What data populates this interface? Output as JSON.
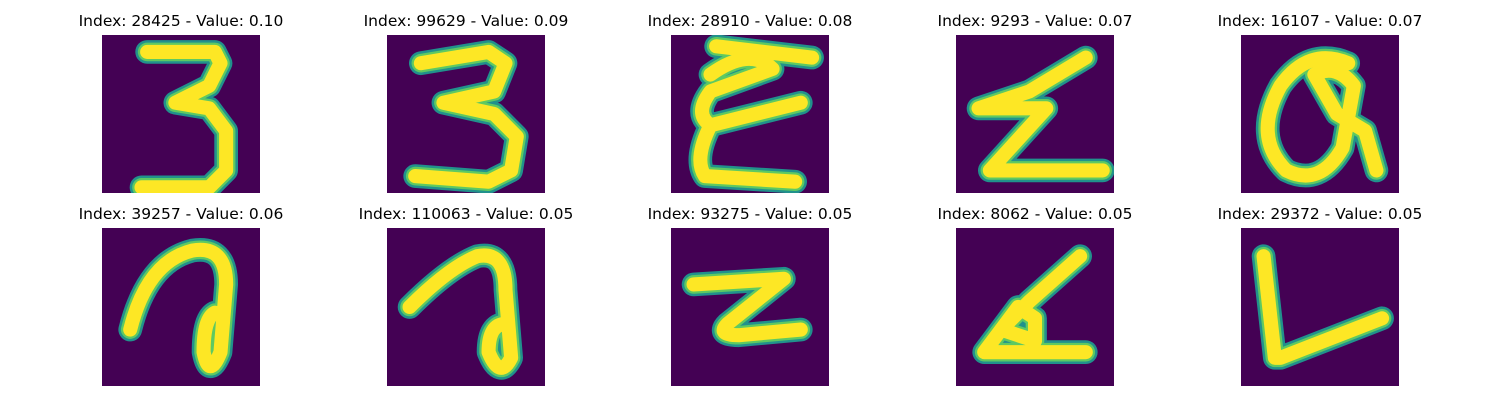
{
  "colors": {
    "background": "#440154",
    "stroke_halo": "#21918c",
    "stroke_mid": "#5ec962",
    "stroke_core": "#fde725"
  },
  "panels": [
    {
      "title": "Index: 28425 - Value: 0.10",
      "index": 28425,
      "value": 0.1
    },
    {
      "title": "Index: 99629 - Value: 0.09",
      "index": 99629,
      "value": 0.09
    },
    {
      "title": "Index: 28910 - Value: 0.08",
      "index": 28910,
      "value": 0.08
    },
    {
      "title": "Index: 9293 - Value: 0.07",
      "index": 9293,
      "value": 0.07
    },
    {
      "title": "Index: 16107 - Value: 0.07",
      "index": 16107,
      "value": 0.07
    },
    {
      "title": "Index: 39257 - Value: 0.06",
      "index": 39257,
      "value": 0.06
    },
    {
      "title": "Index: 110063 - Value: 0.05",
      "index": 110063,
      "value": 0.05
    },
    {
      "title": "Index: 93275 - Value: 0.05",
      "index": 93275,
      "value": 0.05
    },
    {
      "title": "Index: 8062 - Value: 0.05",
      "index": 8062,
      "value": 0.05
    },
    {
      "title": "Index: 29372 - Value: 0.05",
      "index": 29372,
      "value": 0.05
    }
  ]
}
